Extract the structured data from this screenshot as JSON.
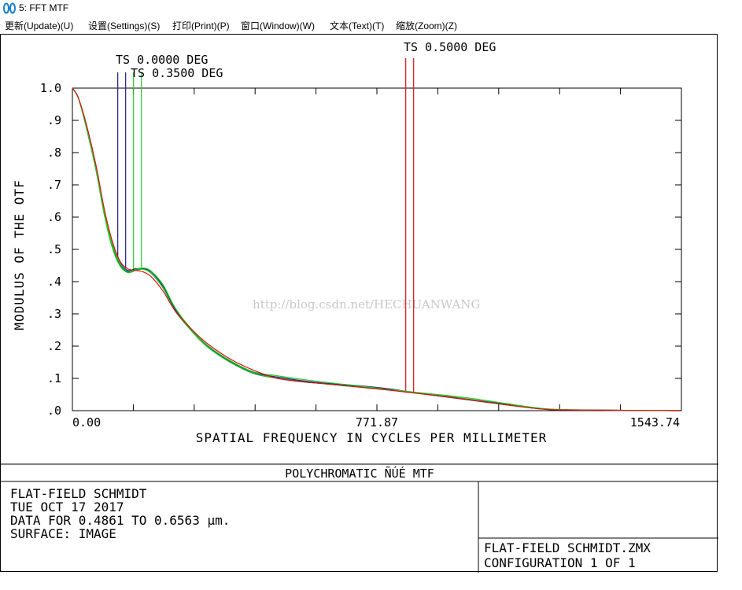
{
  "window": {
    "title": "5: FFT MTF"
  },
  "menu": [
    {
      "label": "更新(Update)(U)"
    },
    {
      "label": "设置(Settings)(S)"
    },
    {
      "label": "打印(Print)(P)"
    },
    {
      "label": "窗口(Window)(W)"
    },
    {
      "label": "文本(Text)(T)"
    },
    {
      "label": "缩放(Zoom)(Z)"
    }
  ],
  "chart_data": {
    "type": "line",
    "title": "POLYCHROMATIC ÑÚÉ  MTF",
    "xlabel": "SPATIAL FREQUENCY IN CYCLES PER MILLIMETER",
    "ylabel": "MODULUS OF THE OTF",
    "xlim": [
      0,
      1543.74
    ],
    "ylim": [
      0,
      1.0
    ],
    "x_tick_labels": [
      "0.00",
      "771.87",
      "1543.74"
    ],
    "y_tick_labels": [
      ".0",
      ".1",
      ".2",
      ".3",
      ".4",
      ".5",
      ".6",
      ".7",
      ".8",
      ".9",
      "1.0"
    ],
    "legend": [
      {
        "name": "TS 0.0000 DEG",
        "color": "#1c1c8c",
        "ts_marks": [
          115,
          135
        ]
      },
      {
        "name": "TS 0.3500 DEG",
        "color": "#22cc22",
        "ts_marks": [
          155,
          175
        ]
      },
      {
        "name": "TS 0.5000 DEG",
        "color": "#dd1111",
        "ts_marks": [
          845,
          865
        ]
      }
    ],
    "series": [
      {
        "name": "TS 0.0000 DEG",
        "color": "#1c1c8c",
        "x": [
          0,
          15,
          35,
          60,
          80,
          100,
          120,
          140,
          160,
          180,
          200,
          230,
          260,
          300,
          340,
          400,
          460,
          520,
          600,
          700,
          800,
          900,
          1000,
          1100,
          1200,
          1300,
          1400,
          1543
        ],
        "y": [
          1.0,
          0.97,
          0.88,
          0.75,
          0.62,
          0.52,
          0.46,
          0.435,
          0.44,
          0.44,
          0.425,
          0.38,
          0.31,
          0.25,
          0.2,
          0.15,
          0.115,
          0.1,
          0.087,
          0.08,
          0.068,
          0.05,
          0.034,
          0.018,
          0.004,
          0.002,
          0.001,
          0.0
        ]
      },
      {
        "name": "TS 0.0000 DEG",
        "color": "#1c1c8c",
        "x": [
          0,
          15,
          35,
          60,
          80,
          100,
          120,
          140,
          160,
          180,
          200,
          230,
          260,
          300,
          340,
          400,
          460,
          520,
          600,
          700,
          800,
          900,
          1000,
          1100,
          1200,
          1300,
          1400,
          1543
        ],
        "y": [
          1.0,
          0.97,
          0.88,
          0.745,
          0.615,
          0.515,
          0.455,
          0.43,
          0.435,
          0.44,
          0.43,
          0.385,
          0.315,
          0.252,
          0.202,
          0.152,
          0.118,
          0.104,
          0.09,
          0.078,
          0.066,
          0.052,
          0.036,
          0.02,
          0.005,
          0.002,
          0.001,
          0.0
        ]
      },
      {
        "name": "TS 0.3500 DEG",
        "color": "#22cc22",
        "x": [
          0,
          15,
          35,
          60,
          80,
          100,
          120,
          140,
          160,
          180,
          200,
          230,
          260,
          300,
          340,
          400,
          460,
          520,
          600,
          700,
          800,
          900,
          1000,
          1100,
          1200,
          1300,
          1400,
          1543
        ],
        "y": [
          1.0,
          0.97,
          0.88,
          0.748,
          0.62,
          0.52,
          0.458,
          0.432,
          0.438,
          0.442,
          0.432,
          0.39,
          0.32,
          0.255,
          0.205,
          0.155,
          0.12,
          0.108,
          0.094,
          0.08,
          0.066,
          0.053,
          0.04,
          0.022,
          0.006,
          0.002,
          0.001,
          0.0
        ]
      },
      {
        "name": "TS 0.3500 DEG",
        "color": "#22cc22",
        "x": [
          0,
          15,
          35,
          60,
          80,
          100,
          120,
          140,
          160,
          180,
          200,
          230,
          260,
          300,
          340,
          400,
          460,
          520,
          600,
          700,
          800,
          900,
          1000,
          1100,
          1200,
          1300,
          1400,
          1543
        ],
        "y": [
          1.0,
          0.97,
          0.88,
          0.745,
          0.612,
          0.51,
          0.45,
          0.428,
          0.434,
          0.438,
          0.425,
          0.38,
          0.31,
          0.25,
          0.2,
          0.15,
          0.116,
          0.1,
          0.088,
          0.076,
          0.064,
          0.05,
          0.036,
          0.018,
          0.005,
          0.002,
          0.001,
          0.0
        ]
      },
      {
        "name": "TS 0.5000 DEG",
        "color": "#dd1111",
        "x": [
          0,
          15,
          35,
          60,
          80,
          100,
          120,
          140,
          160,
          180,
          200,
          230,
          260,
          300,
          340,
          400,
          460,
          520,
          600,
          700,
          800,
          900,
          1000,
          1100,
          1200,
          1300,
          1400,
          1543
        ],
        "y": [
          1.0,
          0.97,
          0.89,
          0.76,
          0.63,
          0.53,
          0.465,
          0.44,
          0.435,
          0.43,
          0.415,
          0.37,
          0.31,
          0.255,
          0.21,
          0.16,
          0.125,
          0.1,
          0.088,
          0.076,
          0.064,
          0.05,
          0.035,
          0.018,
          0.004,
          0.002,
          0.001,
          0.0
        ]
      }
    ]
  },
  "watermark": "http://blog.csdn.net/HECHUANWANG",
  "info": {
    "lens_title": "FLAT-FIELD SCHMIDT",
    "date": "TUE OCT 17 2017",
    "data_range": "DATA FOR 0.4861 TO 0.6563 μm.",
    "surface": "SURFACE: IMAGE",
    "file": "FLAT-FIELD SCHMIDT.ZMX",
    "configuration": "CONFIGURATION 1 OF 1"
  }
}
